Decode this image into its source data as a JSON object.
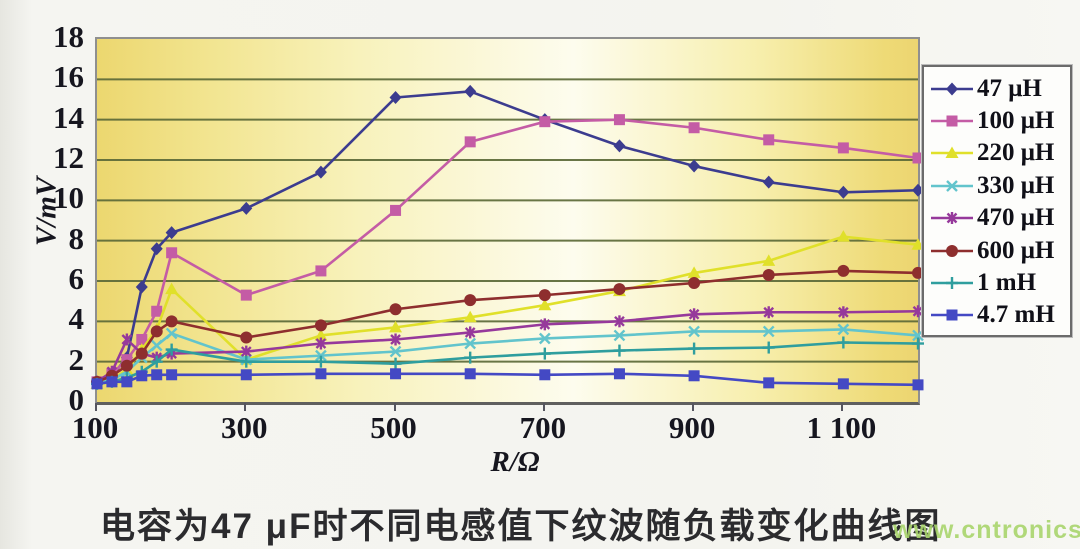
{
  "chart_data": {
    "type": "line",
    "xlabel": "R/Ω",
    "ylabel": "V/mV",
    "xlim": [
      100,
      1200
    ],
    "ylim": [
      0,
      18
    ],
    "grid": "horizontal",
    "legend_position": "right",
    "x_ticks": [
      {
        "label": "100",
        "value": 100
      },
      {
        "label": "300",
        "value": 300
      },
      {
        "label": "500",
        "value": 500
      },
      {
        "label": "700",
        "value": 700
      },
      {
        "label": "900",
        "value": 900
      },
      {
        "label": "1 100",
        "value": 1100
      }
    ],
    "y_ticks": [
      {
        "label": "18",
        "value": 18
      },
      {
        "label": "16",
        "value": 16
      },
      {
        "label": "14",
        "value": 14
      },
      {
        "label": "12",
        "value": 12
      },
      {
        "label": "10",
        "value": 10
      },
      {
        "label": "8",
        "value": 8
      },
      {
        "label": "6",
        "value": 6
      },
      {
        "label": "4",
        "value": 4
      },
      {
        "label": "2",
        "value": 2
      },
      {
        "label": "0",
        "value": 0
      }
    ],
    "x": [
      100,
      120,
      140,
      160,
      180,
      200,
      300,
      400,
      500,
      600,
      700,
      800,
      900,
      1000,
      1100,
      1200
    ],
    "series": [
      {
        "name": "47 μH",
        "color": "#3c3c8f",
        "marker": "diamond",
        "values": [
          1.0,
          1.3,
          2.2,
          5.7,
          7.6,
          8.4,
          9.6,
          11.4,
          15.1,
          15.4,
          14.0,
          12.7,
          11.7,
          10.9,
          10.4,
          10.5
        ]
      },
      {
        "name": "100 μH",
        "color": "#c45ca5",
        "marker": "square",
        "values": [
          1.0,
          1.4,
          2.1,
          3.1,
          4.5,
          7.4,
          5.3,
          6.5,
          9.5,
          12.9,
          13.9,
          14.0,
          13.6,
          13.0,
          12.6,
          12.1
        ]
      },
      {
        "name": "220 μH",
        "color": "#e0e02a",
        "marker": "triangle",
        "values": [
          0.9,
          1.1,
          1.6,
          2.6,
          3.6,
          5.6,
          2.1,
          3.3,
          3.7,
          4.2,
          4.8,
          5.5,
          6.4,
          7.0,
          8.2,
          7.8
        ]
      },
      {
        "name": "330 μH",
        "color": "#62c4cc",
        "marker": "x",
        "values": [
          0.9,
          1.1,
          1.5,
          2.2,
          2.8,
          3.4,
          2.1,
          2.3,
          2.5,
          2.9,
          3.15,
          3.3,
          3.5,
          3.5,
          3.6,
          3.3
        ]
      },
      {
        "name": "470 μH",
        "color": "#96399b",
        "marker": "asterisk",
        "values": [
          1.0,
          1.5,
          3.1,
          2.4,
          2.2,
          2.4,
          2.5,
          2.9,
          3.1,
          3.45,
          3.85,
          4.0,
          4.35,
          4.45,
          4.45,
          4.5
        ]
      },
      {
        "name": "600 μH",
        "color": "#8e2e2e",
        "marker": "circle",
        "values": [
          1.0,
          1.3,
          1.8,
          2.4,
          3.5,
          4.0,
          3.2,
          3.8,
          4.6,
          5.05,
          5.3,
          5.6,
          5.9,
          6.3,
          6.5,
          6.4
        ]
      },
      {
        "name": "1 mH",
        "color": "#2f9e9e",
        "marker": "plus",
        "values": [
          0.9,
          1.0,
          1.2,
          1.5,
          2.0,
          2.6,
          2.0,
          2.0,
          1.9,
          2.2,
          2.4,
          2.55,
          2.65,
          2.7,
          2.95,
          2.9
        ]
      },
      {
        "name": "4.7 mH",
        "color": "#4449c4",
        "marker": "square",
        "values": [
          0.9,
          1.0,
          1.0,
          1.3,
          1.35,
          1.35,
          1.35,
          1.4,
          1.4,
          1.4,
          1.35,
          1.4,
          1.3,
          0.95,
          0.9,
          0.85
        ]
      }
    ]
  },
  "colors": {
    "gridline": "#5c6a38",
    "axis_text": "#16161f",
    "watermark_green": "#a9d56d"
  },
  "caption": "电容为47 μF时不同电感值下纹波随负载变化曲线图",
  "watermark": "www.cntronics.com"
}
